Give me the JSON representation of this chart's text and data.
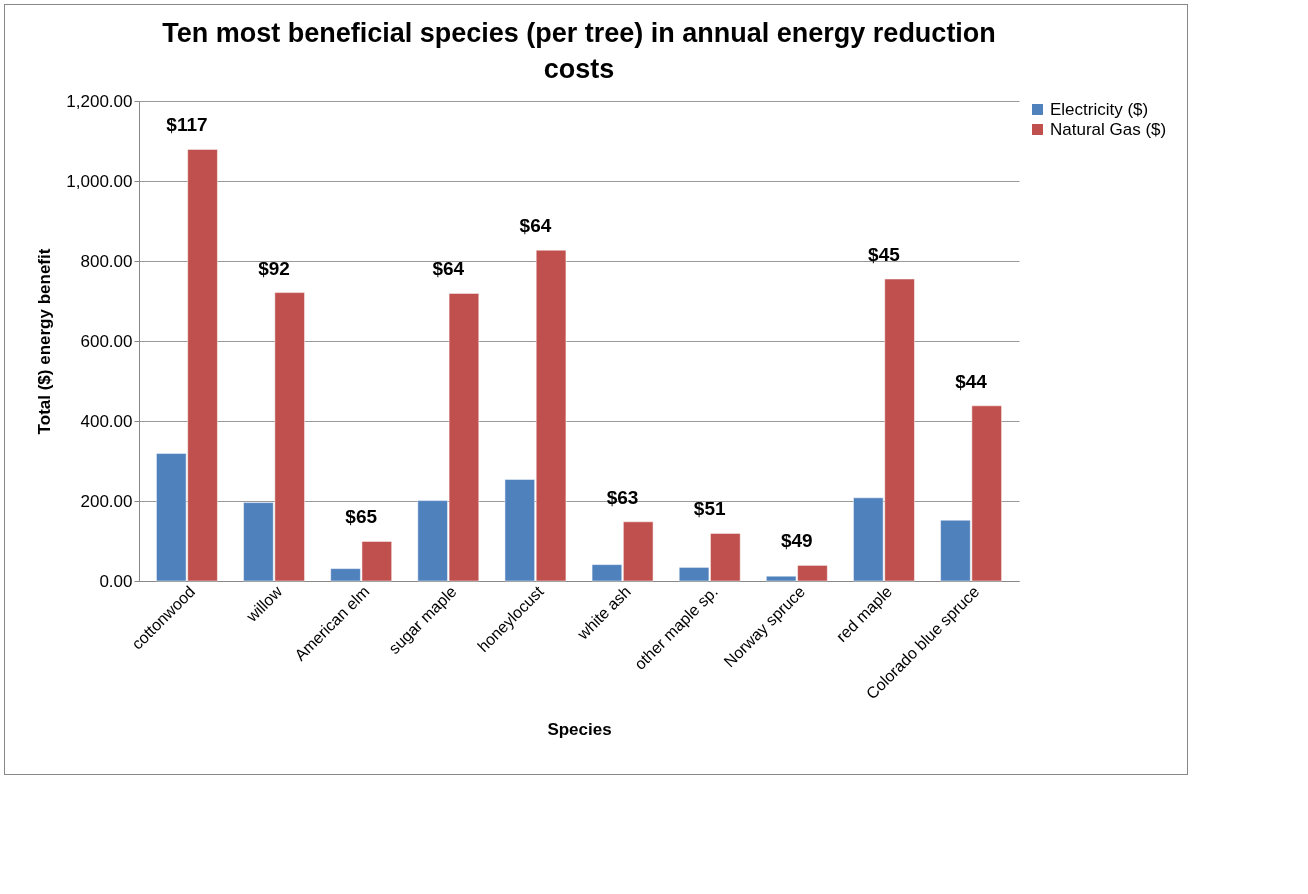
{
  "chart_data": {
    "type": "bar",
    "title": "Ten most beneficial species (per tree) in annual energy reduction costs",
    "xlabel": "Species",
    "ylabel": "Total ($) energy benefit",
    "categories": [
      "cottonwood",
      "willow",
      "American elm",
      "sugar maple",
      "honeylocust",
      "white ash",
      "other maple sp.",
      "Norway spruce",
      "red maple",
      "Colorado blue spruce"
    ],
    "series": [
      {
        "name": "Electricity ($)",
        "color": "#4f81bd",
        "values": [
          319,
          196,
          31,
          201,
          254,
          41,
          34,
          12,
          208,
          152
        ]
      },
      {
        "name": "Natural Gas ($)",
        "color": "#c0504d",
        "values": [
          1079,
          721,
          99,
          719,
          827,
          148,
          119,
          39,
          755,
          438
        ]
      }
    ],
    "ylim": [
      0,
      1200
    ],
    "yticks": [
      {
        "value": 0,
        "label": "0.00"
      },
      {
        "value": 200,
        "label": "200.00"
      },
      {
        "value": 400,
        "label": "400.00"
      },
      {
        "value": 600,
        "label": "600.00"
      },
      {
        "value": 800,
        "label": "800.00"
      },
      {
        "value": 1000,
        "label": "1,000.00"
      },
      {
        "value": 1200,
        "label": "1,200.00"
      }
    ],
    "grid": "y",
    "legend": "right",
    "annotations": [
      "$117",
      "$92",
      "$65",
      "$64",
      "$64",
      "$63",
      "$51",
      "$49",
      "$45",
      "$44"
    ]
  }
}
